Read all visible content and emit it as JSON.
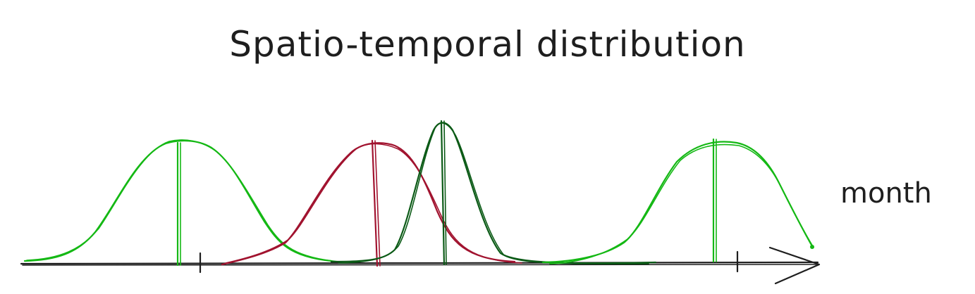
{
  "diagram": {
    "title": "Spatio-temporal distribution",
    "axis_label": "month",
    "colors": {
      "ink": "#1e1e1e",
      "light_green": "#14b814",
      "crimson": "#a1132f",
      "dark_green": "#0b5a16"
    },
    "curves": [
      {
        "name": "light-green-curve-1",
        "color": "light_green"
      },
      {
        "name": "crimson-curve",
        "color": "crimson"
      },
      {
        "name": "dark-green-curve",
        "color": "dark_green"
      },
      {
        "name": "light-green-curve-2",
        "color": "light_green"
      }
    ],
    "ticks": 2
  }
}
